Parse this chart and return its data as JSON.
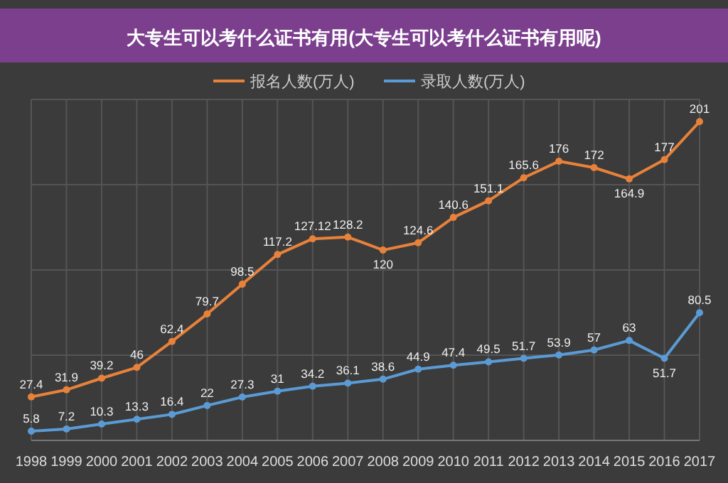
{
  "chart_data": {
    "type": "line",
    "title": "大专生可以考什么证书有用(大专生可以考什么证书有用呢)",
    "categories": [
      "1998",
      "1999",
      "2000",
      "2001",
      "2002",
      "2003",
      "2004",
      "2005",
      "2006",
      "2007",
      "2008",
      "2009",
      "2010",
      "2011",
      "2012",
      "2013",
      "2014",
      "2015",
      "2016",
      "2017"
    ],
    "series": [
      {
        "name": "报名人数(万人)",
        "color": "#e8823a",
        "values": [
          27.4,
          31.9,
          39.2,
          46,
          62.4,
          79.7,
          98.5,
          117.2,
          127.12,
          128.2,
          120,
          124.6,
          140.6,
          151.1,
          165.6,
          176,
          172,
          164.9,
          177,
          201
        ]
      },
      {
        "name": "录取人数(万人)",
        "color": "#5b9bd5",
        "values": [
          5.8,
          7.2,
          10.3,
          13.3,
          16.4,
          22,
          27.3,
          31,
          34.2,
          36.1,
          38.6,
          44.9,
          47.4,
          49.5,
          51.7,
          53.9,
          57,
          63,
          51.7,
          80.5
        ]
      }
    ],
    "ylim": [
      0,
      215
    ],
    "tick_labels": "x",
    "grid": true,
    "legend": "top",
    "marker": "circle",
    "data_labels": true
  }
}
